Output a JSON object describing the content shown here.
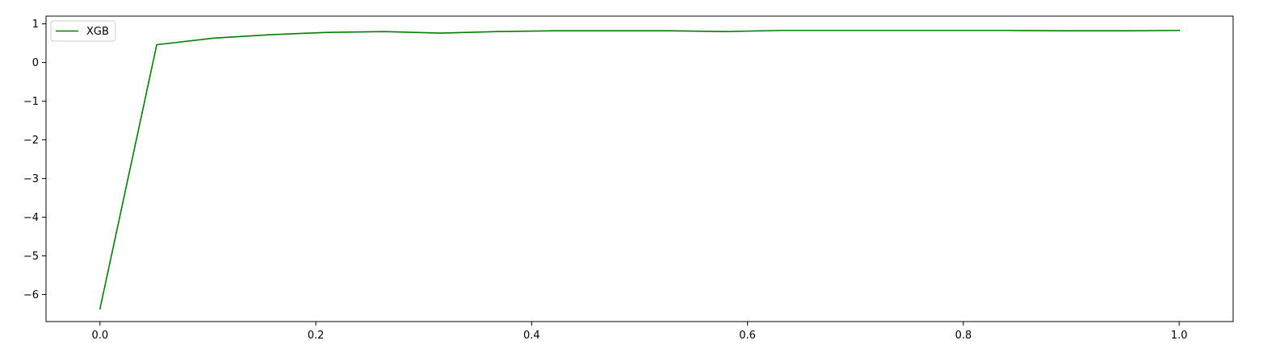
{
  "chart_data": {
    "type": "line",
    "title": "",
    "xlabel": "",
    "ylabel": "",
    "xlim": [
      -0.05,
      1.05
    ],
    "ylim": [
      -6.7,
      1.2
    ],
    "xticks": [
      0.0,
      0.2,
      0.4,
      0.6,
      0.8,
      1.0
    ],
    "xtick_labels": [
      "0.0",
      "0.2",
      "0.4",
      "0.6",
      "0.8",
      "1.0"
    ],
    "yticks": [
      1,
      0,
      -1,
      -2,
      -3,
      -4,
      -5,
      -6
    ],
    "ytick_labels": [
      "1",
      "0",
      "−1",
      "−2",
      "−3",
      "−4",
      "−5",
      "−6"
    ],
    "grid": false,
    "legend": {
      "position": "upper-left",
      "entries": [
        "XGB"
      ]
    },
    "series": [
      {
        "name": "XGB",
        "color": "#008000",
        "x": [
          0.0,
          0.0526,
          0.1053,
          0.1579,
          0.2105,
          0.2632,
          0.3158,
          0.3684,
          0.4211,
          0.4737,
          0.5263,
          0.5789,
          0.6316,
          0.6842,
          0.7368,
          0.7895,
          0.8421,
          0.8947,
          0.9474,
          1.0
        ],
        "y": [
          -6.37,
          0.46,
          0.63,
          0.72,
          0.78,
          0.8,
          0.76,
          0.8,
          0.82,
          0.82,
          0.82,
          0.8,
          0.83,
          0.83,
          0.83,
          0.83,
          0.83,
          0.82,
          0.82,
          0.83
        ]
      }
    ]
  }
}
